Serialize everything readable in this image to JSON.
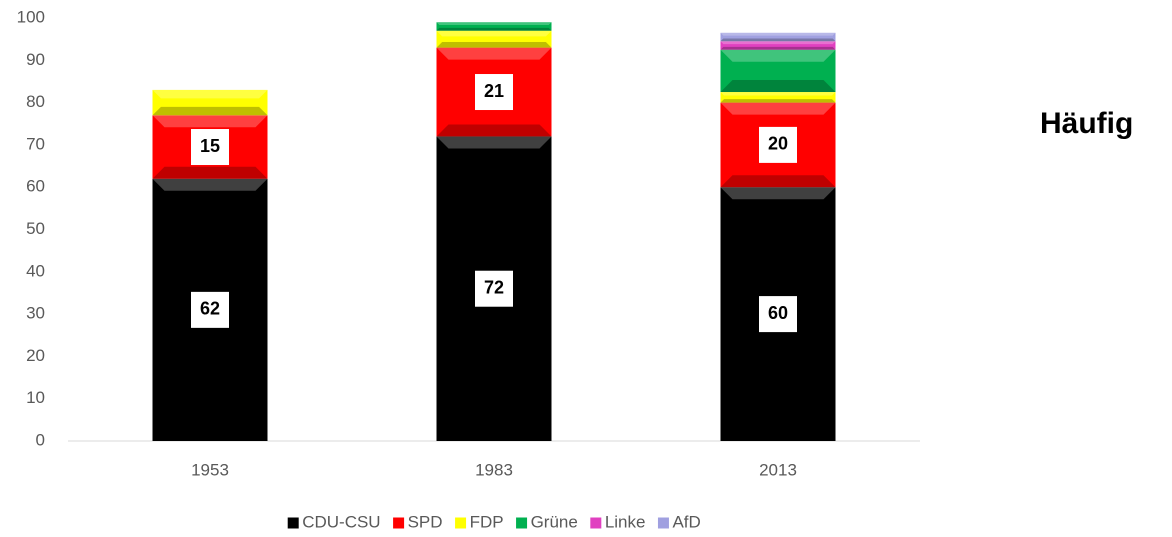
{
  "chart_data": {
    "type": "stacked_bar",
    "annotation": "Häufig",
    "categories": [
      "1953",
      "1983",
      "2013"
    ],
    "series": [
      {
        "name": "CDU-CSU",
        "color": "#000000",
        "values": [
          62,
          72,
          60
        ],
        "labels": true
      },
      {
        "name": "SPD",
        "color": "#ff0000",
        "values": [
          15,
          21,
          20
        ],
        "labels": true
      },
      {
        "name": "FDP",
        "color": "#ffff00",
        "values": [
          6,
          4,
          2.5
        ]
      },
      {
        "name": "Grüne",
        "color": "#00b050",
        "values": [
          null,
          2,
          10
        ]
      },
      {
        "name": "Linke",
        "color": "#e040c0",
        "values": [
          null,
          null,
          2
        ]
      },
      {
        "name": "AfD",
        "color": "#a0a0e0",
        "values": [
          null,
          null,
          2
        ]
      }
    ],
    "ylim": [
      0,
      100
    ],
    "yticks": [
      0,
      10,
      20,
      30,
      40,
      50,
      60,
      70,
      80,
      90,
      100
    ],
    "grid": false,
    "legend": "bottom"
  }
}
